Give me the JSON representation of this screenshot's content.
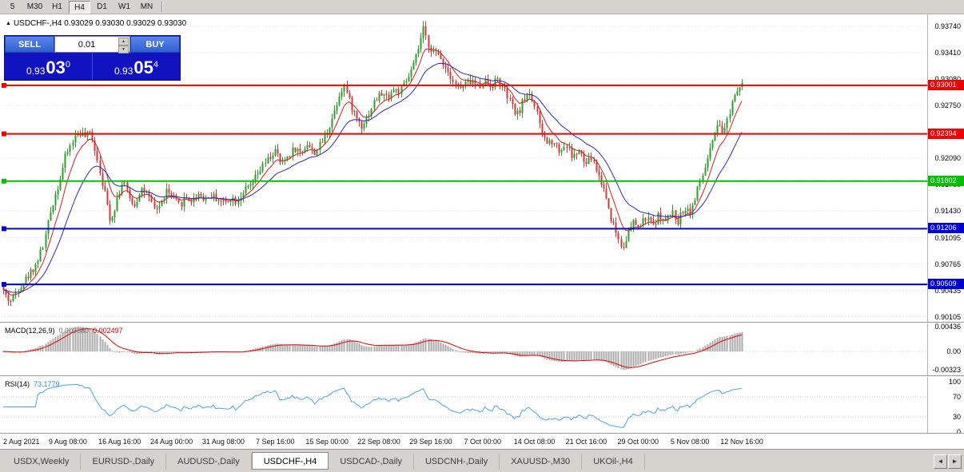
{
  "window": {
    "bg": "#d6d3ce"
  },
  "toolbar": {
    "periods": [
      "5",
      "M30",
      "H1",
      "H4",
      "D1",
      "W1",
      "MN"
    ],
    "active": "H4"
  },
  "chart": {
    "collapse_arrow": "▲",
    "title": "USDCHF-,H4",
    "ohlc": "0.93029 0.93030 0.93029 0.93030"
  },
  "trade_panel": {
    "sell_label": "SELL",
    "buy_label": "BUY",
    "lot_value": "0.01",
    "spin_up": "▲",
    "spin_down": "▼",
    "sell": {
      "prefix": "0.93",
      "pips": "03",
      "point": "0"
    },
    "buy": {
      "prefix": "0.93",
      "pips": "05",
      "point": "4"
    }
  },
  "tabs": {
    "items": [
      "USDX,Weekly",
      "EURUSD-,Daily",
      "AUDUSD-,Daily",
      "USDCHF-,H4",
      "USDCAD-,Daily",
      "USDCNH-,Daily",
      "XAUUSD-,M30",
      "UKOil-,H4"
    ],
    "active_index": 3,
    "scroll_left": "◄",
    "scroll_right": "►"
  },
  "chart_data": {
    "type": "candlestick",
    "symbol": "USDCHF-",
    "timeframe": "H4",
    "open": "0.93029",
    "high": "0.93030",
    "low": "0.93029",
    "close": "0.93030",
    "y_range": [
      0.9004,
      0.9389
    ],
    "y_axis_labels": [
      "0.93740",
      "0.93410",
      "0.93080",
      "0.92750",
      "0.92420",
      "0.92090",
      "0.91760",
      "0.91430",
      "0.91095",
      "0.90765",
      "0.90435",
      "0.90105"
    ],
    "x_labels": [
      "2 Aug 2021",
      "9 Aug 08:00",
      "16 Aug 16:00",
      "24 Aug 00:00",
      "31 Aug 08:00",
      "7 Sep 16:00",
      "15 Sep 00:00",
      "22 Sep 08:00",
      "29 Sep 16:00",
      "7 Oct 00:00",
      "14 Oct 08:00",
      "21 Oct 16:00",
      "29 Oct 00:00",
      "5 Nov 08:00",
      "12 Nov 16:00"
    ],
    "levels": [
      {
        "label": "0.93001",
        "price": 0.93001,
        "color": "#ee0000"
      },
      {
        "label": "0.92394",
        "price": 0.92394,
        "color": "#ee0000"
      },
      {
        "label": "0.91802",
        "price": 0.91802,
        "color": "#00c000"
      },
      {
        "label": "0.91206",
        "price": 0.91206,
        "color": "#0000d0"
      },
      {
        "label": "0.90509",
        "price": 0.90509,
        "color": "#0000d0"
      }
    ],
    "colors": {
      "up": "#2f9e2f",
      "down": "#cc3a3a",
      "ma_fast": "#cc2222",
      "ma_slow": "#2a2ab0",
      "macd_hist": "#aaaaaa",
      "macd_signal": "#dd0000",
      "rsi": "#4da3e8",
      "grid": "#e4e4e4"
    },
    "price_path_anchors": [
      [
        0,
        0.9048
      ],
      [
        6,
        0.9034
      ],
      [
        12,
        0.903
      ],
      [
        20,
        0.9046
      ],
      [
        30,
        0.9058
      ],
      [
        42,
        0.9075
      ],
      [
        52,
        0.91
      ],
      [
        62,
        0.9148
      ],
      [
        72,
        0.918
      ],
      [
        80,
        0.9212
      ],
      [
        88,
        0.923
      ],
      [
        96,
        0.9242
      ],
      [
        104,
        0.9236
      ],
      [
        112,
        0.924
      ],
      [
        120,
        0.9205
      ],
      [
        128,
        0.9168
      ],
      [
        136,
        0.913
      ],
      [
        144,
        0.9158
      ],
      [
        152,
        0.9182
      ],
      [
        158,
        0.916
      ],
      [
        166,
        0.915
      ],
      [
        174,
        0.9172
      ],
      [
        182,
        0.9162
      ],
      [
        190,
        0.9145
      ],
      [
        198,
        0.915
      ],
      [
        206,
        0.9168
      ],
      [
        214,
        0.9158
      ],
      [
        222,
        0.915
      ],
      [
        230,
        0.916
      ],
      [
        238,
        0.9155
      ],
      [
        246,
        0.9165
      ],
      [
        254,
        0.9158
      ],
      [
        262,
        0.9162
      ],
      [
        270,
        0.9158
      ],
      [
        278,
        0.9152
      ],
      [
        286,
        0.916
      ],
      [
        294,
        0.9155
      ],
      [
        302,
        0.9168
      ],
      [
        310,
        0.9172
      ],
      [
        318,
        0.9185
      ],
      [
        326,
        0.9198
      ],
      [
        334,
        0.9208
      ],
      [
        342,
        0.9218
      ],
      [
        350,
        0.92
      ],
      [
        358,
        0.9212
      ],
      [
        366,
        0.9222
      ],
      [
        374,
        0.9215
      ],
      [
        382,
        0.9228
      ],
      [
        390,
        0.9215
      ],
      [
        398,
        0.9225
      ],
      [
        406,
        0.924
      ],
      [
        414,
        0.9262
      ],
      [
        422,
        0.9288
      ],
      [
        428,
        0.9302
      ],
      [
        434,
        0.9282
      ],
      [
        442,
        0.9262
      ],
      [
        450,
        0.925
      ],
      [
        458,
        0.9262
      ],
      [
        466,
        0.928
      ],
      [
        474,
        0.929
      ],
      [
        482,
        0.9285
      ],
      [
        490,
        0.9295
      ],
      [
        498,
        0.9292
      ],
      [
        506,
        0.9305
      ],
      [
        514,
        0.9322
      ],
      [
        521,
        0.9345
      ],
      [
        527,
        0.937
      ],
      [
        533,
        0.9352
      ],
      [
        540,
        0.9342
      ],
      [
        548,
        0.9336
      ],
      [
        556,
        0.9322
      ],
      [
        564,
        0.9308
      ],
      [
        572,
        0.9295
      ],
      [
        580,
        0.9302
      ],
      [
        588,
        0.9306
      ],
      [
        596,
        0.9298
      ],
      [
        604,
        0.9306
      ],
      [
        612,
        0.93
      ],
      [
        620,
        0.9308
      ],
      [
        628,
        0.9295
      ],
      [
        636,
        0.9278
      ],
      [
        644,
        0.9262
      ],
      [
        652,
        0.928
      ],
      [
        660,
        0.9292
      ],
      [
        668,
        0.927
      ],
      [
        674,
        0.9242
      ],
      [
        682,
        0.9228
      ],
      [
        690,
        0.9232
      ],
      [
        698,
        0.9218
      ],
      [
        706,
        0.9226
      ],
      [
        714,
        0.921
      ],
      [
        722,
        0.9218
      ],
      [
        730,
        0.92
      ],
      [
        738,
        0.921
      ],
      [
        746,
        0.9188
      ],
      [
        754,
        0.9168
      ],
      [
        762,
        0.9135
      ],
      [
        770,
        0.9112
      ],
      [
        776,
        0.9096
      ],
      [
        782,
        0.9112
      ],
      [
        790,
        0.9128
      ],
      [
        798,
        0.9122
      ],
      [
        806,
        0.9135
      ],
      [
        814,
        0.9125
      ],
      [
        822,
        0.9138
      ],
      [
        830,
        0.9128
      ],
      [
        838,
        0.9142
      ],
      [
        846,
        0.913
      ],
      [
        854,
        0.9148
      ],
      [
        862,
        0.9142
      ],
      [
        866,
        0.9155
      ],
      [
        874,
        0.918
      ],
      [
        882,
        0.9205
      ],
      [
        890,
        0.9232
      ],
      [
        896,
        0.9248
      ],
      [
        902,
        0.924
      ],
      [
        908,
        0.9258
      ],
      [
        914,
        0.9282
      ],
      [
        920,
        0.9298
      ],
      [
        926,
        0.9303
      ]
    ],
    "indicators": {
      "macd": {
        "name": "MACD(12,26,9)",
        "value_hist": "0.003380",
        "value_signal": "0.002497",
        "params": [
          12,
          26,
          9
        ],
        "axis_labels": [
          0.00436,
          0,
          -0.00323
        ]
      },
      "rsi": {
        "name": "RSI(14)",
        "value": "73.1779",
        "period": 14,
        "axis_labels": [
          100,
          70,
          30,
          0
        ],
        "levels": [
          70,
          30
        ]
      }
    }
  }
}
